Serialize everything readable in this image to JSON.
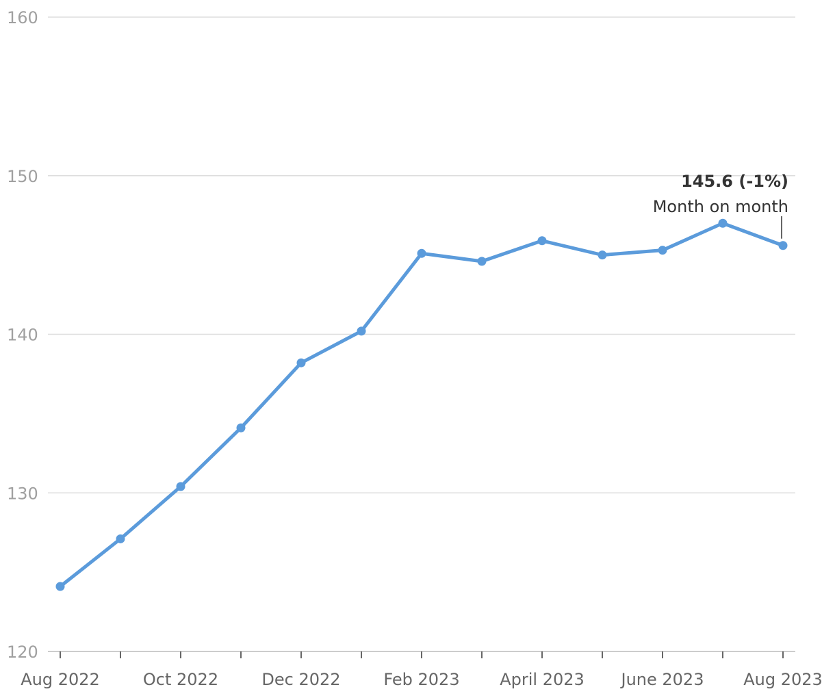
{
  "chart_data": {
    "type": "line",
    "categories": [
      "Aug 2022",
      null,
      "Oct 2022",
      null,
      "Dec 2022",
      null,
      "Feb 2023",
      null,
      "April 2023",
      null,
      "June 2023",
      null,
      "Aug 2023"
    ],
    "series": [
      {
        "color": "#5b9bdb",
        "values": [
          124.1,
          127.1,
          130.4,
          134.1,
          138.2,
          140.2,
          145.1,
          144.6,
          145.9,
          145.0,
          145.3,
          147.0,
          145.6
        ],
        "value_labels": [
          null,
          null,
          null,
          null,
          null,
          null,
          null,
          null,
          null,
          null,
          null,
          null,
          "145.6 (-1%)"
        ]
      }
    ],
    "annotation": "Month on month",
    "ylim": [
      120,
      160
    ],
    "yticks": [
      120,
      130,
      140,
      150,
      160
    ],
    "grid": true
  }
}
